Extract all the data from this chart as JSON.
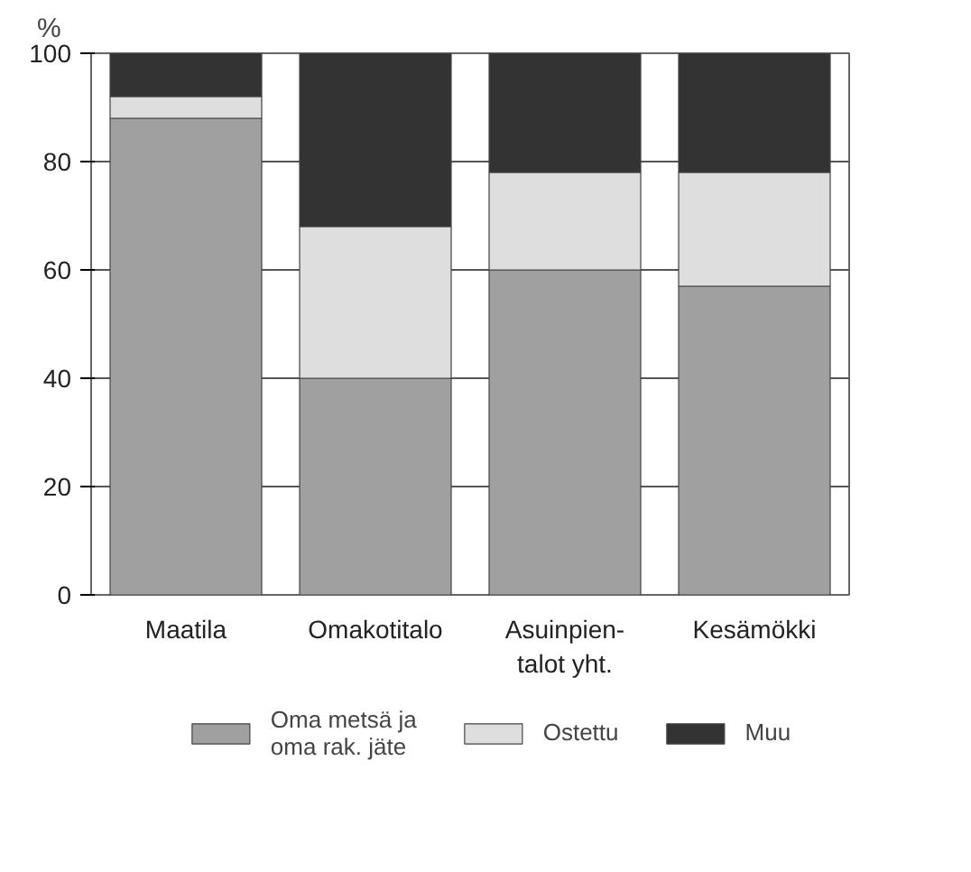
{
  "chart_data": {
    "type": "bar",
    "stacked": true,
    "ylabel": "%",
    "categories": [
      "Maatila",
      "Omakotitalo",
      "Asuinpien-\ntalot yht.",
      "Kesämökki"
    ],
    "series": [
      {
        "name": "Oma metsä ja\noma rak. jäte",
        "color": "#a0a0a0",
        "values": [
          88,
          40,
          60,
          57
        ]
      },
      {
        "name": "Ostettu",
        "color": "#dedede",
        "values": [
          4,
          28,
          18,
          21
        ]
      },
      {
        "name": "Muu",
        "color": "#333333",
        "values": [
          8,
          32,
          22,
          22
        ]
      }
    ],
    "ylim": [
      0,
      100
    ],
    "yticks": [
      0,
      20,
      40,
      60,
      80,
      100
    ],
    "grid": "y",
    "legend": "bottom"
  }
}
